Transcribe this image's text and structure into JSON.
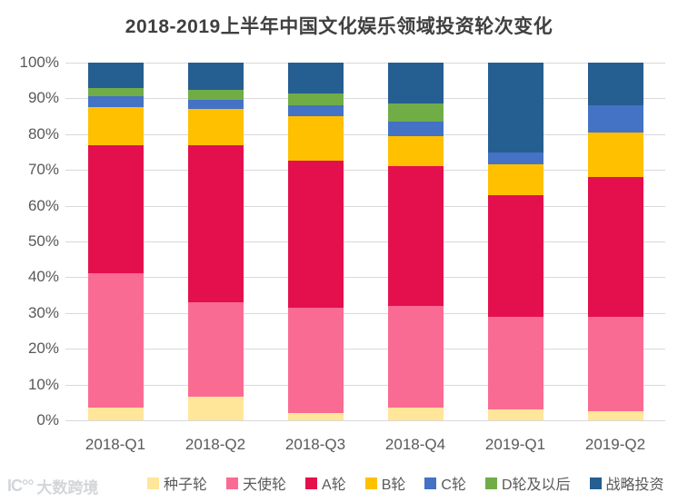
{
  "title": "2018-2019上半年中国文化娱乐领域投资轮次变化",
  "watermark": {
    "logo": "IC°°",
    "text": "大数跨境"
  },
  "colors": {
    "background": "#ffffff",
    "title_text": "#404040",
    "axis_text": "#595959",
    "gridline": "#d9d9d9",
    "watermark_text": "#d3d6d9"
  },
  "chart_data": {
    "type": "bar",
    "stacked": true,
    "percent_stacked": true,
    "title": "2018-2019上半年中国文化娱乐领域投资轮次变化",
    "xlabel": "",
    "ylabel": "",
    "ylim": [
      0,
      100
    ],
    "yticks": [
      "0%",
      "10%",
      "20%",
      "30%",
      "40%",
      "50%",
      "60%",
      "70%",
      "80%",
      "90%",
      "100%"
    ],
    "grid": true,
    "legend_position": "bottom",
    "categories": [
      "2018-Q1",
      "2018-Q2",
      "2018-Q3",
      "2018-Q4",
      "2019-Q1",
      "2019-Q2"
    ],
    "series": [
      {
        "key": "seed-round",
        "name": "种子轮",
        "color": "#FFE699",
        "values": [
          3.5,
          6.5,
          2.0,
          3.5,
          3.0,
          2.5
        ]
      },
      {
        "key": "angel-round",
        "name": "天使轮",
        "color": "#FA6B93",
        "values": [
          37.5,
          26.5,
          29.5,
          28.5,
          26.0,
          26.5
        ]
      },
      {
        "key": "round-a",
        "name": "A轮",
        "color": "#E4104E",
        "values": [
          36.0,
          44.0,
          41.0,
          39.0,
          34.0,
          39.0
        ]
      },
      {
        "key": "round-b",
        "name": "B轮",
        "color": "#FFC000",
        "values": [
          10.5,
          10.0,
          12.5,
          8.5,
          8.5,
          12.5
        ]
      },
      {
        "key": "round-c",
        "name": "C轮",
        "color": "#4472C4",
        "values": [
          3.0,
          2.5,
          3.0,
          4.0,
          3.5,
          7.5
        ]
      },
      {
        "key": "round-d-plus",
        "name": "D轮及以后",
        "color": "#70AD47",
        "values": [
          2.5,
          3.0,
          3.5,
          5.0,
          0.0,
          0.0
        ]
      },
      {
        "key": "strategic-invest",
        "name": "战略投资",
        "color": "#255E91",
        "values": [
          7.0,
          7.5,
          8.5,
          11.5,
          25.0,
          12.0
        ]
      }
    ]
  }
}
